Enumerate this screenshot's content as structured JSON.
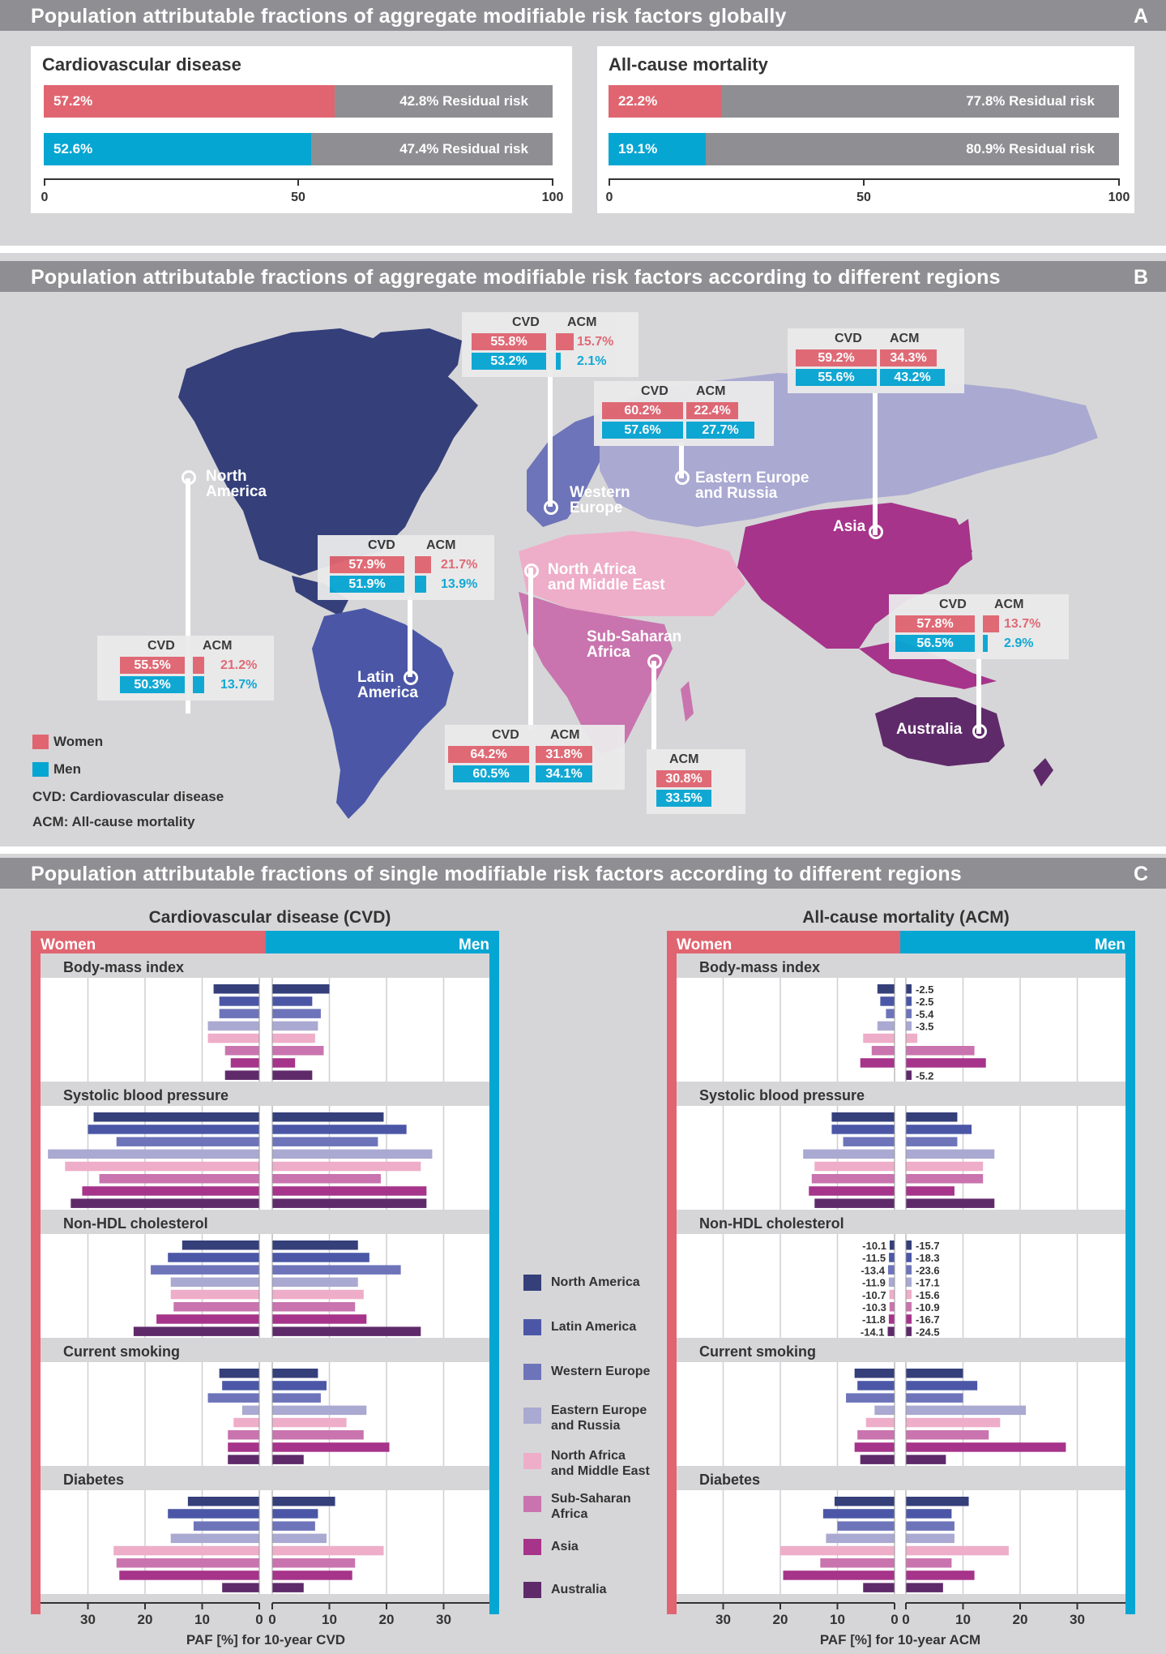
{
  "panelA": {
    "title": "Population attributable fractions of aggregate modifiable risk factors globally",
    "letter": "A",
    "cvd": {
      "title": "Cardiovascular disease",
      "women": 57.2,
      "men": 52.6,
      "women_label": "57.2%",
      "men_label": "52.6%",
      "women_resid": "42.8% Residual risk",
      "men_resid": "47.4% Residual risk"
    },
    "acm": {
      "title": "All-cause mortality",
      "women": 22.2,
      "men": 19.1,
      "women_label": "22.2%",
      "men_label": "19.1%",
      "women_resid": "77.8% Residual risk",
      "men_resid": "80.9% Residual risk"
    },
    "ticks": [
      "0",
      "50",
      "100"
    ]
  },
  "panelB": {
    "title": "Population attributable fractions of aggregate modifiable risk factors according to different regions",
    "letter": "B",
    "cvd_h": "CVD",
    "acm_h": "ACM",
    "regions": [
      {
        "name": "North America",
        "line1": "North",
        "line2": "America",
        "cvd_w": "55.5%",
        "cvd_m": "50.3%",
        "acm_w": "21.2%",
        "acm_m": "13.7%"
      },
      {
        "name": "Latin America",
        "line1": "Latin",
        "line2": "America",
        "cvd_w": "57.9%",
        "cvd_m": "51.9%",
        "acm_w": "21.7%",
        "acm_m": "13.9%"
      },
      {
        "name": "Western Europe",
        "line1": "Western",
        "line2": "Europe",
        "cvd_w": "55.8%",
        "cvd_m": "53.2%",
        "acm_w": "15.7%",
        "acm_m": "2.1%"
      },
      {
        "name": "Eastern Europe and Russia",
        "line1": "Eastern Europe",
        "line2": "and Russia",
        "cvd_w": "60.2%",
        "cvd_m": "57.6%",
        "acm_w": "22.4%",
        "acm_m": "27.7%"
      },
      {
        "name": "Asia",
        "line1": "Asia",
        "line2": "",
        "cvd_w": "59.2%",
        "cvd_m": "55.6%",
        "acm_w": "34.3%",
        "acm_m": "43.2%"
      },
      {
        "name": "North Africa and Middle East",
        "line1": "North Africa",
        "line2": "and Middle East",
        "cvd_w": "64.2%",
        "cvd_m": "60.5%",
        "acm_w": "31.8%",
        "acm_m": "34.1%"
      },
      {
        "name": "Sub-Saharan Africa",
        "line1": "Sub-Saharan",
        "line2": "Africa",
        "acm_w": "30.8%",
        "acm_m": "33.5%"
      },
      {
        "name": "Australia",
        "line1": "Australia",
        "line2": "",
        "cvd_w": "57.8%",
        "cvd_m": "56.5%",
        "acm_w": "13.7%",
        "acm_m": "2.9%"
      }
    ],
    "legend": {
      "women": "Women",
      "men": "Men",
      "cvd": "CVD: Cardiovascular disease",
      "acm": "ACM: All-cause mortality"
    }
  },
  "panelC": {
    "title": "Population attributable fractions of single modifiable risk factors according to different regions",
    "letter": "C",
    "cvd_title": "Cardiovascular disease (CVD)",
    "acm_title": "All-cause mortality (ACM)",
    "women": "Women",
    "men": "Men",
    "cvd_xlabel": "PAF [%] for 10-year CVD",
    "acm_xlabel": "PAF [%] for 10-year ACM",
    "ticks_left": [
      "30",
      "20",
      "10",
      "0"
    ],
    "ticks_right": [
      "0",
      "10",
      "20",
      "30"
    ],
    "region_legend": [
      "North America",
      "Latin America",
      "Western Europe",
      "Eastern Europe and Russia",
      "North Africa and Middle East",
      "Sub-Saharan Africa",
      "Asia",
      "Australia"
    ]
  },
  "colors": {
    "women": "#e06570",
    "men": "#06a6d3",
    "grey": "#8f8f93",
    "regions": [
      "#353f7a",
      "#4b57a6",
      "#6e74ba",
      "#a9a9d2",
      "#eeadc8",
      "#c974ae",
      "#a6348a",
      "#5f2a6a"
    ]
  },
  "chart_data": [
    {
      "type": "bar",
      "title": "Population attributable fractions of aggregate modifiable risk factors globally",
      "categories": [
        "Cardiovascular disease",
        "All-cause mortality"
      ],
      "series": [
        {
          "name": "Women",
          "values": [
            57.2,
            22.2
          ]
        },
        {
          "name": "Men",
          "values": [
            52.6,
            19.1
          ]
        }
      ],
      "xlim": [
        0,
        100
      ]
    },
    {
      "type": "bar",
      "title": "Cardiovascular disease (CVD)",
      "xlabel": "PAF [%] for 10-year CVD",
      "xlim": [
        -37,
        37
      ],
      "categories": [
        "North America",
        "Latin America",
        "Western Europe",
        "Eastern Europe and Russia",
        "North Africa and Middle East",
        "Sub-Saharan Africa",
        "Asia",
        "Australia"
      ],
      "groups": [
        {
          "factor": "Body-mass index",
          "women": [
            8,
            7,
            7,
            9,
            9,
            6,
            5,
            6
          ],
          "men": [
            10,
            7,
            8.5,
            8,
            7.5,
            9,
            4,
            7
          ]
        },
        {
          "factor": "Systolic blood pressure",
          "women": [
            29,
            30,
            25,
            37,
            34,
            28,
            31,
            33
          ],
          "men": [
            19.5,
            23.5,
            18.5,
            28,
            26,
            19,
            27,
            27
          ]
        },
        {
          "factor": "Non-HDL cholesterol",
          "women": [
            13.5,
            16,
            19,
            15.5,
            15.5,
            15,
            18,
            22
          ],
          "men": [
            15,
            17,
            22.5,
            15,
            16,
            14.5,
            16.5,
            26
          ]
        },
        {
          "factor": "Current smoking",
          "women": [
            7,
            6.5,
            9,
            3,
            4.5,
            5.5,
            5.5,
            5.5
          ],
          "men": [
            8,
            9.5,
            8.5,
            16.5,
            13,
            16,
            20.5,
            5.5
          ]
        },
        {
          "factor": "Diabetes",
          "women": [
            12.5,
            16,
            11.5,
            15.5,
            25.5,
            25,
            24.5,
            6.5
          ],
          "men": [
            11,
            8,
            7.5,
            9.5,
            19.5,
            14.5,
            14,
            5.5
          ]
        }
      ]
    },
    {
      "type": "bar",
      "title": "All-cause mortality (ACM)",
      "xlabel": "PAF [%] for 10-year ACM",
      "xlim": [
        -37,
        37
      ],
      "categories": [
        "North America",
        "Latin America",
        "Western Europe",
        "Eastern Europe and Russia",
        "North Africa and Middle East",
        "Sub-Saharan Africa",
        "Asia",
        "Australia"
      ],
      "groups": [
        {
          "factor": "Body-mass index",
          "women": [
            3,
            2.5,
            1.5,
            3,
            5.5,
            4,
            6,
            0
          ],
          "men": [
            -2.5,
            -2.5,
            -5.4,
            -3.5,
            2,
            12,
            14,
            -5.2
          ],
          "men_labels": [
            "-2.5",
            "-2.5",
            "-5.4",
            "-3.5",
            "",
            "",
            "",
            "-5.2"
          ]
        },
        {
          "factor": "Systolic blood pressure",
          "women": [
            11,
            11,
            9,
            16,
            14,
            14.5,
            15,
            14
          ],
          "men": [
            9,
            11.5,
            9,
            15.5,
            13.5,
            13.5,
            8.5,
            15.5
          ]
        },
        {
          "factor": "Non-HDL cholesterol",
          "women": [
            -10.1,
            -11.5,
            -13.4,
            -11.9,
            -10.7,
            -10.3,
            -11.8,
            -14.1
          ],
          "men": [
            -15.7,
            -18.3,
            -23.6,
            -17.1,
            -15.6,
            -10.9,
            -16.7,
            -24.5
          ],
          "women_labels": [
            "-10.1",
            "-11.5",
            "-13.4",
            "-11.9",
            "-10.7",
            "-10.3",
            "-11.8",
            "-14.1"
          ],
          "men_labels": [
            "-15.7",
            "-18.3",
            "-23.6",
            "-17.1",
            "-15.6",
            "-10.9",
            "-16.7",
            "-24.5"
          ]
        },
        {
          "factor": "Current smoking",
          "women": [
            7,
            6.5,
            8.5,
            3.5,
            5,
            6.5,
            7,
            6
          ],
          "men": [
            10,
            12.5,
            10,
            21,
            16.5,
            14.5,
            28,
            7
          ]
        },
        {
          "factor": "Diabetes",
          "women": [
            10.5,
            12.5,
            10,
            12,
            20,
            13,
            19.5,
            5.5
          ],
          "men": [
            11,
            8,
            8.5,
            8.5,
            18,
            8,
            12,
            6.5
          ]
        }
      ]
    }
  ]
}
